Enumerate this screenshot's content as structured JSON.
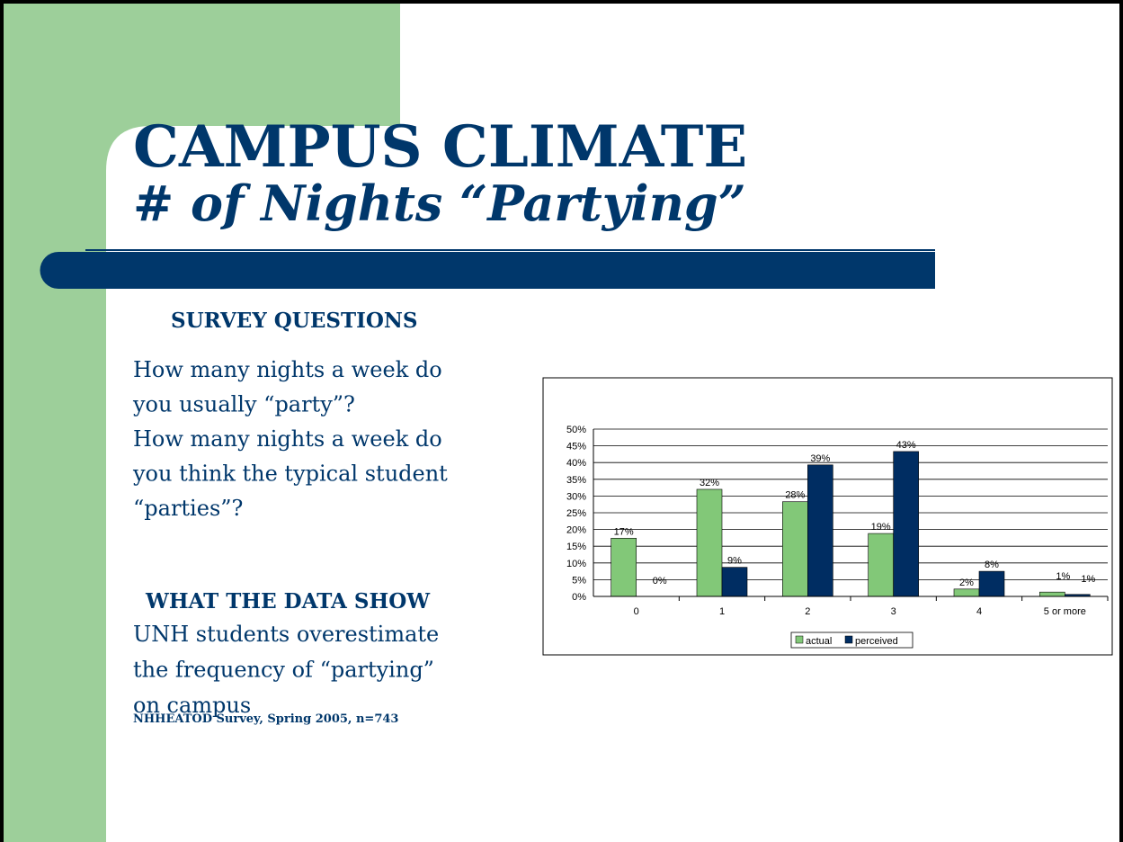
{
  "slide": {
    "title": "CAMPUS CLIMATE",
    "subtitle": "# of Nights “Partying”",
    "survey_heading": "SURVEY QUESTIONS",
    "survey_lines": [
      "How many nights a week do",
      "you usually “party”?",
      "How many nights a week do",
      "you think the typical student",
      "“parties”?"
    ],
    "data_heading": "WHAT THE DATA SHOW",
    "data_lines": [
      "UNH students overestimate",
      "the frequency of “partying”",
      "on campus"
    ],
    "source": "NHHEATOD Survey, Spring 2005, n=743"
  },
  "chart_data": {
    "type": "bar",
    "categories": [
      "0",
      "1",
      "2",
      "3",
      "4",
      "5 or more"
    ],
    "series": [
      {
        "name": "actual",
        "color": "#82c878",
        "values": [
          17.4,
          32,
          28.3,
          18.8,
          2.2,
          1.3
        ],
        "value_labels": [
          "17%",
          "32%",
          "28%",
          "19%",
          "2%",
          "1%"
        ]
      },
      {
        "name": "perceived",
        "color": "#002d62",
        "values": [
          0,
          8.7,
          39.3,
          43.3,
          7.5,
          0.6
        ],
        "value_labels": [
          "0%",
          "9%",
          "39%",
          "43%",
          "8%",
          "1%"
        ]
      }
    ],
    "ylim": [
      0,
      50
    ],
    "yticks": [
      {
        "value": 0,
        "label": "0%"
      },
      {
        "value": 5,
        "label": "5%"
      },
      {
        "value": 10,
        "label": "10%"
      },
      {
        "value": 15,
        "label": "15%"
      },
      {
        "value": 20,
        "label": "20%"
      },
      {
        "value": 25,
        "label": "25%"
      },
      {
        "value": 30,
        "label": "30%"
      },
      {
        "value": 35,
        "label": "35%"
      },
      {
        "value": 40,
        "label": "40%"
      },
      {
        "value": 45,
        "label": "45%"
      },
      {
        "value": 50,
        "label": "50%"
      }
    ],
    "grid": true,
    "legend": "bottom"
  }
}
